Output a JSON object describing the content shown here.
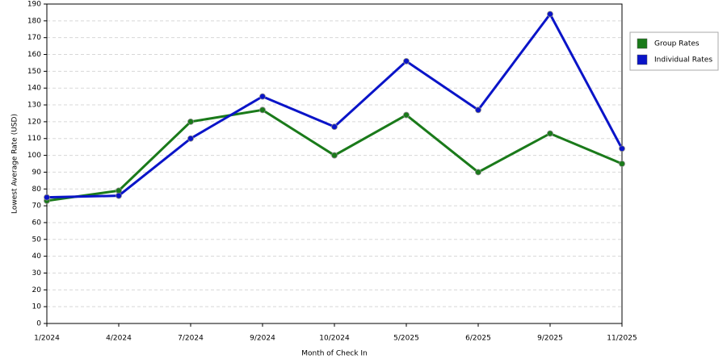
{
  "chart_data": {
    "type": "line",
    "x_label": "Month of Check In",
    "y_label": "Lowest Average Rate (USD)",
    "categories": [
      "1/2024",
      "4/2024",
      "7/2024",
      "9/2024",
      "10/2024",
      "5/2025",
      "6/2025",
      "9/2025",
      "11/2025"
    ],
    "series": [
      {
        "name": "Group Rates",
        "color": "#1a7a1a",
        "values": [
          73,
          79,
          120,
          127,
          100,
          124,
          90,
          113,
          95
        ]
      },
      {
        "name": "Individual Rates",
        "color": "#0a14c8",
        "values": [
          75,
          76,
          110,
          135,
          117,
          156,
          127,
          184,
          104
        ]
      }
    ],
    "ylim": [
      0,
      190
    ],
    "yticks": [
      0,
      10,
      20,
      30,
      40,
      50,
      60,
      70,
      80,
      90,
      100,
      110,
      120,
      130,
      140,
      150,
      160,
      170,
      180,
      190
    ],
    "grid": true,
    "legend": "right"
  }
}
